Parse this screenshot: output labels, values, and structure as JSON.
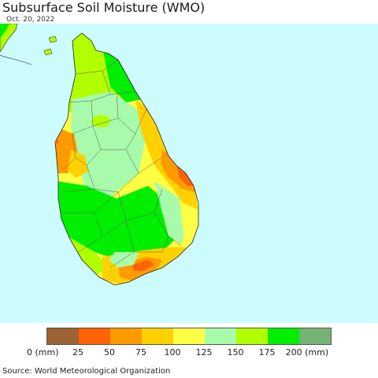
{
  "title": "Subsurface Soil Moisture (WMO)",
  "date": "Oct. 20, 2022",
  "source": "Source: World Meteorological Organization",
  "colors": {
    "ocean": "#ccfcfe",
    "land_dry_brown": "#9c6334",
    "orange_red": "#ff6200",
    "orange": "#ff9b00",
    "gold": "#ffd100",
    "yellow": "#ffff46",
    "light_green": "#a8fbab",
    "yellow_green": "#b2ff00",
    "green": "#00ee00",
    "muted_green": "#75b275"
  },
  "legend": {
    "swatches": [
      {
        "color": "#9c6334"
      },
      {
        "color": "#ff6200"
      },
      {
        "color": "#ff9b00"
      },
      {
        "color": "#ffd100"
      },
      {
        "color": "#ffff46"
      },
      {
        "color": "#a8fbab"
      },
      {
        "color": "#b2ff00"
      },
      {
        "color": "#00ee00"
      },
      {
        "color": "#75b275"
      }
    ],
    "labels": [
      "0 (mm)",
      "25",
      "50",
      "75",
      "100",
      "125",
      "150",
      "175",
      "200 (mm)"
    ]
  }
}
